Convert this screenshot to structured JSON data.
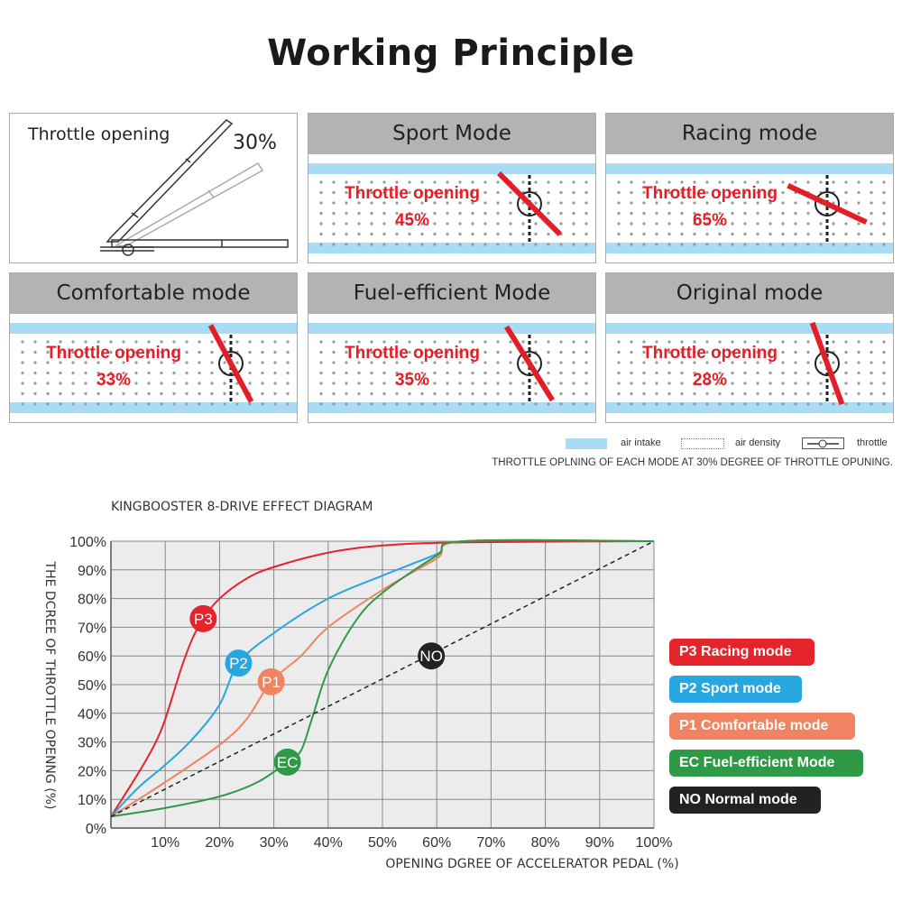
{
  "title": "Working Principle",
  "intro_panel": {
    "label": "Throttle opening",
    "value": "30%"
  },
  "panels": [
    {
      "title": "Sport Mode",
      "label": "Throttle opening",
      "value": "45%"
    },
    {
      "title": "Racing mode",
      "label": "Throttle opening",
      "value": "65%"
    },
    {
      "title": "Comfortable mode",
      "label": "Throttle opening",
      "value": "33%"
    },
    {
      "title": "Fuel-efficient Mode",
      "label": "Throttle opening",
      "value": "35%"
    },
    {
      "title": "Original mode",
      "label": "Throttle opening",
      "value": "28%"
    }
  ],
  "panel_legend": {
    "air_intake": "air intake",
    "air_density": "air density",
    "throttle": "throttle",
    "note": "THROTTLE OPLNING OF EACH MODE AT 30% DEGREE OF THROTTLE OPUNING."
  },
  "colors": {
    "air_intake": "#a8dcf5",
    "throttle_line": "#e41e26",
    "header": "#b3b3b3"
  },
  "chart_data": {
    "type": "line",
    "title": "KINGBOOSTER 8-DRIVE EFFECT DIAGRAM",
    "xlabel": "OPENING DGREE OF ACCELERATOR PEDAL (%)",
    "ylabel": "THE DCREE OF THROTTLE OPENNG (%)",
    "xlim": [
      0,
      100
    ],
    "ylim": [
      0,
      100
    ],
    "x_ticks": [
      "10%",
      "20%",
      "30%",
      "40%",
      "50%",
      "60%",
      "70%",
      "80%",
      "90%",
      "100%"
    ],
    "y_ticks": [
      "0%",
      "10%",
      "20%",
      "30%",
      "40%",
      "50%",
      "60%",
      "70%",
      "80%",
      "90%",
      "100%"
    ],
    "grid": true,
    "legend_placement": "right",
    "series": [
      {
        "name": "P3 Racing mode",
        "tag": "P3",
        "color": "#e5232b",
        "dashed": false,
        "label_at": [
          17,
          73
        ],
        "points": [
          [
            0,
            4
          ],
          [
            5,
            19
          ],
          [
            8,
            29
          ],
          [
            10,
            38
          ],
          [
            13,
            56
          ],
          [
            15,
            66
          ],
          [
            17,
            73
          ],
          [
            20,
            80
          ],
          [
            25,
            87
          ],
          [
            30,
            91
          ],
          [
            40,
            96
          ],
          [
            50,
            98.5
          ],
          [
            65,
            99.6
          ],
          [
            100,
            100
          ]
        ]
      },
      {
        "name": "P2 Sport mode",
        "tag": "P2",
        "color": "#27a6e1",
        "dashed": false,
        "label_at": [
          23.5,
          57.5
        ],
        "points": [
          [
            0,
            4
          ],
          [
            5,
            14
          ],
          [
            10,
            22
          ],
          [
            15,
            31
          ],
          [
            20,
            43
          ],
          [
            23.5,
            57.5
          ],
          [
            30,
            68
          ],
          [
            40,
            80
          ],
          [
            50,
            88
          ],
          [
            60,
            95.5
          ],
          [
            65,
            100
          ],
          [
            100,
            100
          ]
        ]
      },
      {
        "name": "P1 Comfortable mode",
        "tag": "P1",
        "color": "#f08462",
        "dashed": false,
        "label_at": [
          29.5,
          51
        ],
        "points": [
          [
            0,
            4
          ],
          [
            10,
            16
          ],
          [
            20,
            29
          ],
          [
            25,
            38
          ],
          [
            29.5,
            51
          ],
          [
            35,
            60
          ],
          [
            40,
            70
          ],
          [
            50,
            83
          ],
          [
            60,
            94
          ],
          [
            65,
            100
          ],
          [
            100,
            100
          ]
        ]
      },
      {
        "name": "EC Fuel-efficient Mode",
        "tag": "EC",
        "color": "#2f9a46",
        "dashed": false,
        "label_at": [
          32.5,
          23
        ],
        "points": [
          [
            0,
            4
          ],
          [
            10,
            7
          ],
          [
            20,
            11
          ],
          [
            27,
            16
          ],
          [
            32.5,
            23
          ],
          [
            35,
            27
          ],
          [
            37,
            38
          ],
          [
            40,
            55
          ],
          [
            45,
            72
          ],
          [
            50,
            82
          ],
          [
            60,
            95
          ],
          [
            65,
            100
          ],
          [
            100,
            100
          ]
        ]
      },
      {
        "name": "NO Normal mode",
        "tag": "NO",
        "color": "#222222",
        "dashed": true,
        "label_at": [
          59,
          60
        ],
        "points": [
          [
            0,
            4
          ],
          [
            100,
            100
          ]
        ]
      }
    ]
  }
}
